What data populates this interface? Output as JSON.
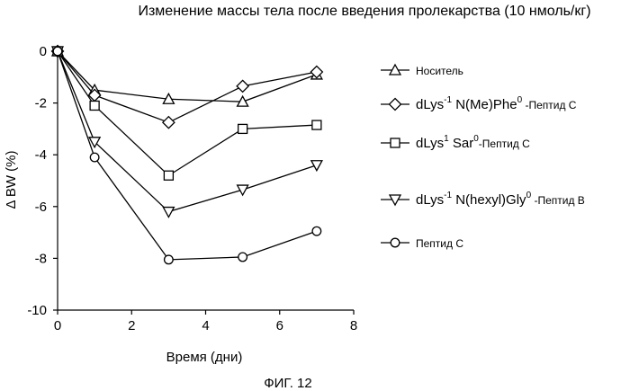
{
  "chart_data": {
    "type": "line",
    "title": "Изменение массы тела после введения пролекарства (10 нмоль/кг)",
    "xlabel": "Время (дни)",
    "ylabel": "Δ BW (%)",
    "xlim": [
      0,
      8
    ],
    "ylim": [
      -10,
      0
    ],
    "xticks": [
      "0",
      "2",
      "4",
      "6",
      "8"
    ],
    "yticks": [
      "0",
      "-2",
      "-4",
      "-6",
      "-8",
      "-10"
    ],
    "grid": false,
    "legend_position": "right",
    "series": [
      {
        "marker": "triangle-up",
        "legend": {
          "main": "Носитель",
          "sup": "",
          "tail": "",
          "sub": ""
        },
        "x": [
          0,
          1,
          3,
          5,
          7
        ],
        "y": [
          0,
          -1.5,
          -1.85,
          -1.95,
          -0.9
        ]
      },
      {
        "marker": "diamond",
        "legend": {
          "main": "dLys",
          "sup": "-1",
          "tail": " N(Me)Phe",
          "sup2": "0",
          "sub": " -Пептид С"
        },
        "x": [
          0,
          1,
          3,
          5,
          7
        ],
        "y": [
          0,
          -1.7,
          -2.75,
          -1.35,
          -0.8
        ]
      },
      {
        "marker": "square",
        "legend": {
          "main": "dLys",
          "sup": "1",
          "tail": " Sar",
          "sup2": "0",
          "sub": "-Пептид С"
        },
        "x": [
          0,
          1,
          3,
          5,
          7
        ],
        "y": [
          0,
          -2.1,
          -4.8,
          -3.0,
          -2.85
        ]
      },
      {
        "marker": "triangle-down",
        "legend": {
          "main": "dLys",
          "sup": "-1",
          "tail": " N(hexyl)Gly",
          "sup2": "0",
          "sub": " -Пептид В"
        },
        "x": [
          0,
          1,
          3,
          5,
          7
        ],
        "y": [
          0,
          -3.5,
          -6.2,
          -5.35,
          -4.4
        ]
      },
      {
        "marker": "circle",
        "legend": {
          "main": "Пептид С",
          "sup": "",
          "tail": "",
          "sub": ""
        },
        "x": [
          0,
          1,
          3,
          5,
          7
        ],
        "y": [
          0,
          -4.1,
          -8.05,
          -7.95,
          -6.95
        ]
      }
    ]
  },
  "caption": "ФИГ. 12"
}
